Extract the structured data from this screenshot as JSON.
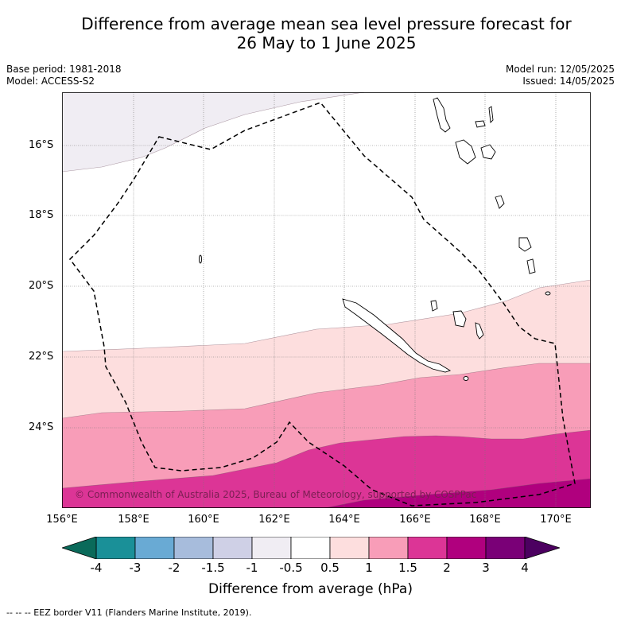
{
  "title_line1": "Difference from average mean sea level pressure forecast for",
  "title_line2": "26 May to 1 June 2025",
  "meta_left": {
    "base_period": "Base period: 1981-2018",
    "model": "Model: ACCESS-S2"
  },
  "meta_right": {
    "model_run": "Model run: 12/05/2025",
    "issued": "Issued: 14/05/2025"
  },
  "lat_labels": [
    "16°S",
    "18°S",
    "20°S",
    "22°S",
    "24°S"
  ],
  "lon_labels": [
    "156°E",
    "158°E",
    "160°E",
    "162°E",
    "164°E",
    "166°E",
    "168°E",
    "170°E"
  ],
  "copyright": "© Commonwealth of Australia 2025, Bureau of Meteorology, supported by COSPPac",
  "colorbar": {
    "ticks": [
      "-4",
      "-3",
      "-2",
      "-1.5",
      "-1",
      "-0.5",
      "0.5",
      "1",
      "1.5",
      "2",
      "3",
      "4"
    ],
    "colors": [
      "#1a9098",
      "#69aad4",
      "#a7bcdc",
      "#cfd0e6",
      "#f0edf3",
      "#ffffff",
      "#fddede",
      "#f89db8",
      "#dc3596",
      "#b0007e",
      "#7a0077"
    ],
    "under_color": "#0a6a5a",
    "over_color": "#4c0060",
    "label": "Difference from average (hPa)"
  },
  "footer": "-- -- -- EEZ border V11 (Flanders Marine Institute, 2019)."
}
